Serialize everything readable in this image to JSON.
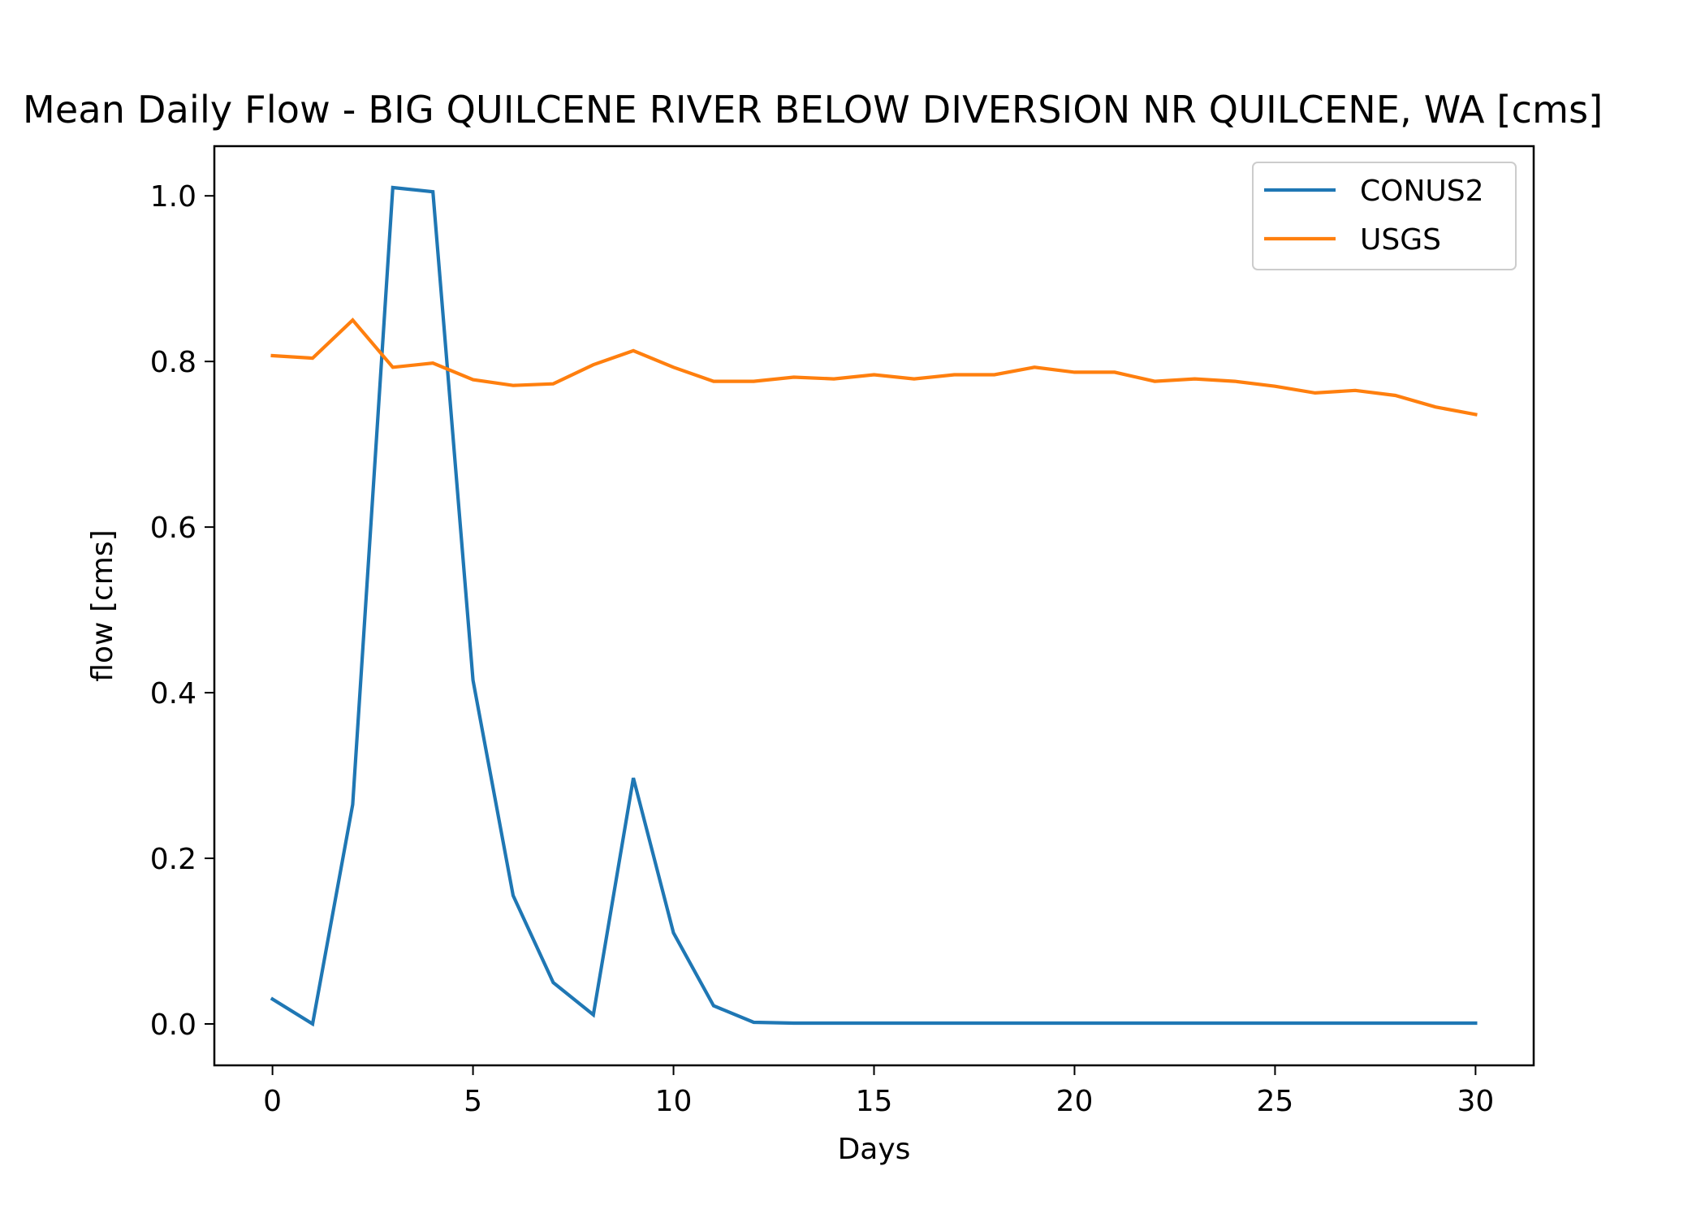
{
  "chart_data": {
    "type": "line",
    "title": "Mean Daily Flow - BIG QUILCENE RIVER BELOW DIVERSION NR QUILCENE, WA [cms]",
    "xlabel": "Days",
    "ylabel": "flow [cms]",
    "xlim": [
      -1.45,
      31.45
    ],
    "ylim": [
      -0.05,
      1.06
    ],
    "xticks": [
      0,
      5,
      10,
      15,
      20,
      25,
      30
    ],
    "yticks": [
      0.0,
      0.2,
      0.4,
      0.6,
      0.8,
      1.0
    ],
    "xtick_labels": [
      "0",
      "5",
      "10",
      "15",
      "20",
      "25",
      "30"
    ],
    "ytick_labels": [
      "0.0",
      "0.2",
      "0.4",
      "0.6",
      "0.8",
      "1.0"
    ],
    "grid": false,
    "legend_position": "top-right",
    "x": [
      0,
      1,
      2,
      3,
      4,
      5,
      6,
      7,
      8,
      9,
      10,
      11,
      12,
      13,
      14,
      15,
      16,
      17,
      18,
      19,
      20,
      21,
      22,
      23,
      24,
      25,
      26,
      27,
      28,
      29,
      30
    ],
    "series": [
      {
        "name": "CONUS2",
        "color": "#1f77b4",
        "values": [
          0.03,
          0.0,
          0.265,
          1.01,
          1.005,
          0.415,
          0.155,
          0.05,
          0.011,
          0.297,
          0.11,
          0.022,
          0.002,
          0.001,
          0.001,
          0.001,
          0.001,
          0.001,
          0.001,
          0.001,
          0.001,
          0.001,
          0.001,
          0.001,
          0.001,
          0.001,
          0.001,
          0.001,
          0.001,
          0.001,
          0.001
        ]
      },
      {
        "name": "USGS",
        "color": "#ff7f0e",
        "values": [
          0.807,
          0.804,
          0.85,
          0.793,
          0.798,
          0.778,
          0.771,
          0.773,
          0.796,
          0.813,
          0.793,
          0.776,
          0.776,
          0.781,
          0.779,
          0.784,
          0.779,
          0.784,
          0.784,
          0.793,
          0.787,
          0.787,
          0.776,
          0.779,
          0.776,
          0.77,
          0.762,
          0.765,
          0.759,
          0.745,
          0.736
        ]
      }
    ]
  }
}
